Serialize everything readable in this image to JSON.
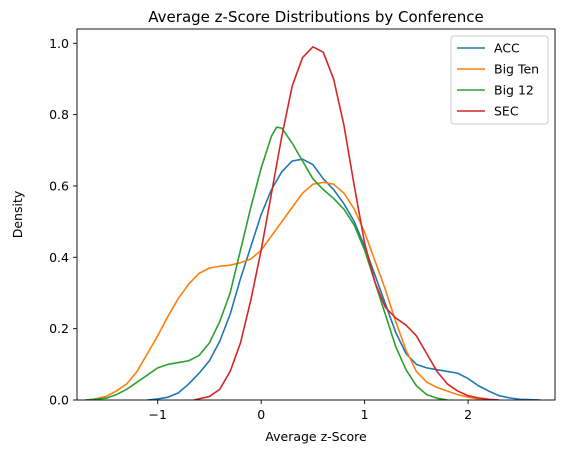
{
  "chart_data": {
    "type": "line",
    "title": "Average z-Score Distributions by Conference",
    "xlabel": "Average z-Score",
    "ylabel": "Density",
    "xlim": [
      -1.78,
      2.84
    ],
    "ylim": [
      0.0,
      1.04
    ],
    "xticks": [
      -1,
      0,
      1,
      2
    ],
    "xtick_labels": [
      "−1",
      "0",
      "1",
      "2"
    ],
    "yticks": [
      0.0,
      0.2,
      0.4,
      0.6,
      0.8,
      1.0
    ],
    "ytick_labels": [
      "0.0",
      "0.2",
      "0.4",
      "0.6",
      "0.8",
      "1.0"
    ],
    "grid": false,
    "legend_position": "top-right",
    "series": [
      {
        "name": "ACC",
        "color": "#1f77b4",
        "points": [
          [
            -1.1,
            0.0
          ],
          [
            -1.0,
            0.003
          ],
          [
            -0.9,
            0.008
          ],
          [
            -0.8,
            0.02
          ],
          [
            -0.7,
            0.045
          ],
          [
            -0.6,
            0.075
          ],
          [
            -0.5,
            0.11
          ],
          [
            -0.4,
            0.165
          ],
          [
            -0.3,
            0.24
          ],
          [
            -0.2,
            0.34
          ],
          [
            -0.1,
            0.43
          ],
          [
            0.0,
            0.52
          ],
          [
            0.1,
            0.59
          ],
          [
            0.2,
            0.64
          ],
          [
            0.3,
            0.67
          ],
          [
            0.4,
            0.675
          ],
          [
            0.5,
            0.66
          ],
          [
            0.6,
            0.62
          ],
          [
            0.7,
            0.59
          ],
          [
            0.8,
            0.55
          ],
          [
            0.9,
            0.5
          ],
          [
            1.0,
            0.43
          ],
          [
            1.1,
            0.35
          ],
          [
            1.2,
            0.27
          ],
          [
            1.3,
            0.19
          ],
          [
            1.4,
            0.13
          ],
          [
            1.5,
            0.1
          ],
          [
            1.6,
            0.09
          ],
          [
            1.7,
            0.085
          ],
          [
            1.8,
            0.08
          ],
          [
            1.9,
            0.075
          ],
          [
            2.0,
            0.06
          ],
          [
            2.1,
            0.04
          ],
          [
            2.2,
            0.025
          ],
          [
            2.3,
            0.012
          ],
          [
            2.4,
            0.006
          ],
          [
            2.5,
            0.002
          ],
          [
            2.7,
            0.0
          ]
        ]
      },
      {
        "name": "Big Ten",
        "color": "#ff7f0e",
        "points": [
          [
            -1.65,
            0.0
          ],
          [
            -1.5,
            0.01
          ],
          [
            -1.4,
            0.025
          ],
          [
            -1.3,
            0.045
          ],
          [
            -1.2,
            0.08
          ],
          [
            -1.1,
            0.13
          ],
          [
            -1.0,
            0.18
          ],
          [
            -0.9,
            0.235
          ],
          [
            -0.8,
            0.285
          ],
          [
            -0.7,
            0.325
          ],
          [
            -0.6,
            0.355
          ],
          [
            -0.5,
            0.37
          ],
          [
            -0.4,
            0.375
          ],
          [
            -0.3,
            0.378
          ],
          [
            -0.2,
            0.385
          ],
          [
            -0.1,
            0.395
          ],
          [
            0.0,
            0.42
          ],
          [
            0.1,
            0.46
          ],
          [
            0.2,
            0.5
          ],
          [
            0.3,
            0.54
          ],
          [
            0.4,
            0.58
          ],
          [
            0.5,
            0.605
          ],
          [
            0.6,
            0.61
          ],
          [
            0.7,
            0.605
          ],
          [
            0.8,
            0.58
          ],
          [
            0.9,
            0.535
          ],
          [
            1.0,
            0.47
          ],
          [
            1.1,
            0.39
          ],
          [
            1.2,
            0.31
          ],
          [
            1.3,
            0.22
          ],
          [
            1.4,
            0.14
          ],
          [
            1.5,
            0.08
          ],
          [
            1.6,
            0.05
          ],
          [
            1.7,
            0.035
          ],
          [
            1.8,
            0.025
          ],
          [
            1.9,
            0.015
          ],
          [
            2.0,
            0.008
          ],
          [
            2.1,
            0.003
          ],
          [
            2.2,
            0.0
          ]
        ]
      },
      {
        "name": "Big 12",
        "color": "#2ca02c",
        "points": [
          [
            -1.7,
            0.0
          ],
          [
            -1.5,
            0.005
          ],
          [
            -1.4,
            0.015
          ],
          [
            -1.3,
            0.03
          ],
          [
            -1.2,
            0.05
          ],
          [
            -1.1,
            0.07
          ],
          [
            -1.0,
            0.09
          ],
          [
            -0.9,
            0.1
          ],
          [
            -0.8,
            0.105
          ],
          [
            -0.7,
            0.11
          ],
          [
            -0.6,
            0.125
          ],
          [
            -0.5,
            0.16
          ],
          [
            -0.4,
            0.22
          ],
          [
            -0.3,
            0.3
          ],
          [
            -0.2,
            0.42
          ],
          [
            -0.1,
            0.54
          ],
          [
            0.0,
            0.65
          ],
          [
            0.1,
            0.74
          ],
          [
            0.15,
            0.765
          ],
          [
            0.2,
            0.762
          ],
          [
            0.3,
            0.72
          ],
          [
            0.4,
            0.67
          ],
          [
            0.5,
            0.62
          ],
          [
            0.6,
            0.59
          ],
          [
            0.7,
            0.565
          ],
          [
            0.8,
            0.535
          ],
          [
            0.9,
            0.49
          ],
          [
            1.0,
            0.42
          ],
          [
            1.1,
            0.33
          ],
          [
            1.2,
            0.24
          ],
          [
            1.3,
            0.15
          ],
          [
            1.4,
            0.085
          ],
          [
            1.5,
            0.04
          ],
          [
            1.6,
            0.015
          ],
          [
            1.7,
            0.005
          ],
          [
            1.8,
            0.0
          ]
        ]
      },
      {
        "name": "SEC",
        "color": "#d62728",
        "points": [
          [
            -0.65,
            0.0
          ],
          [
            -0.5,
            0.01
          ],
          [
            -0.4,
            0.03
          ],
          [
            -0.3,
            0.08
          ],
          [
            -0.2,
            0.16
          ],
          [
            -0.1,
            0.28
          ],
          [
            0.0,
            0.42
          ],
          [
            0.1,
            0.58
          ],
          [
            0.2,
            0.74
          ],
          [
            0.3,
            0.88
          ],
          [
            0.4,
            0.96
          ],
          [
            0.5,
            0.99
          ],
          [
            0.6,
            0.975
          ],
          [
            0.7,
            0.9
          ],
          [
            0.8,
            0.77
          ],
          [
            0.9,
            0.6
          ],
          [
            1.0,
            0.44
          ],
          [
            1.1,
            0.33
          ],
          [
            1.2,
            0.26
          ],
          [
            1.3,
            0.23
          ],
          [
            1.4,
            0.21
          ],
          [
            1.5,
            0.18
          ],
          [
            1.6,
            0.13
          ],
          [
            1.7,
            0.08
          ],
          [
            1.8,
            0.045
          ],
          [
            1.9,
            0.025
          ],
          [
            2.0,
            0.012
          ],
          [
            2.1,
            0.006
          ],
          [
            2.2,
            0.002
          ],
          [
            2.3,
            0.0
          ]
        ]
      }
    ]
  }
}
